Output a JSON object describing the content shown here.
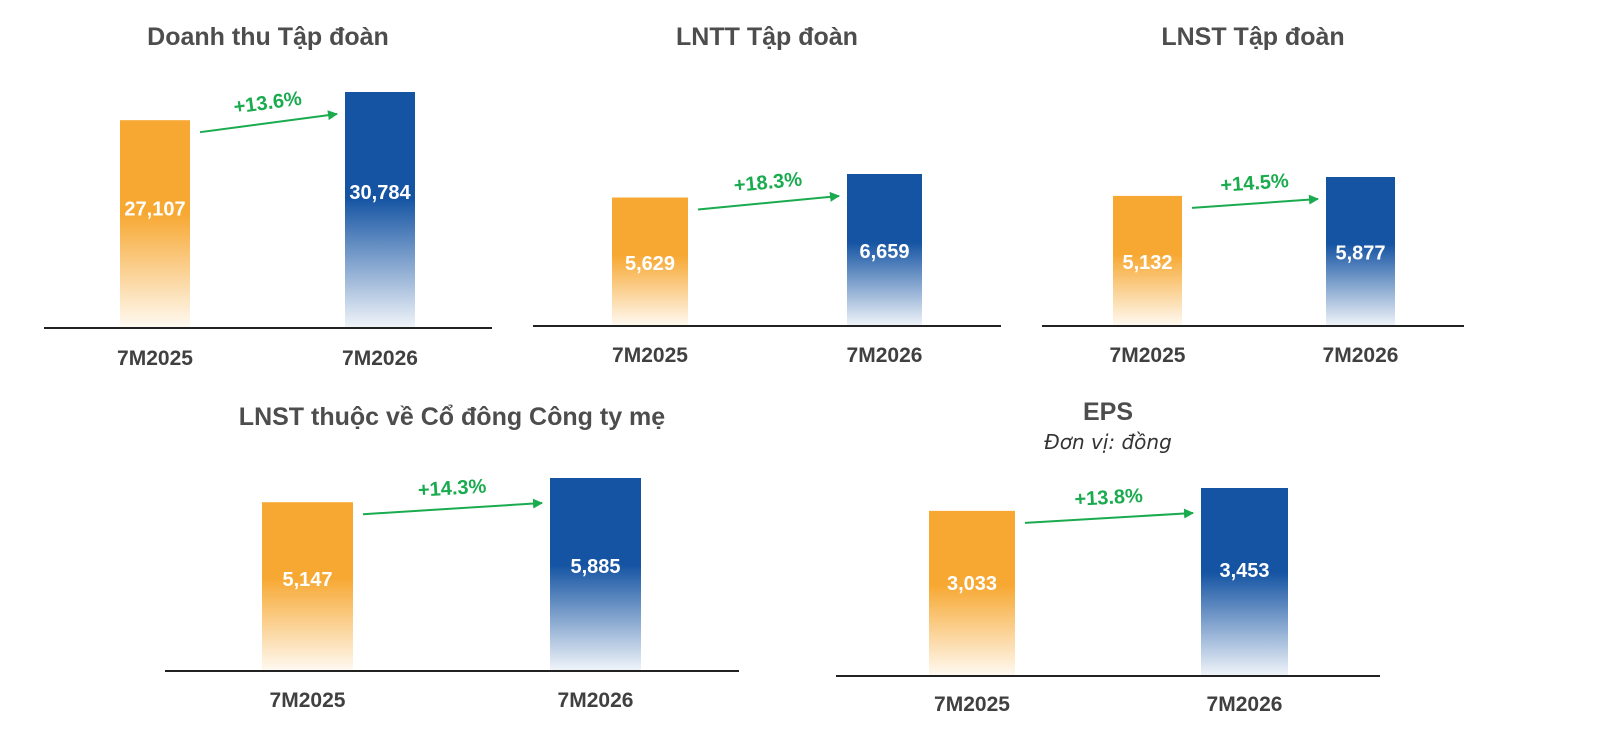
{
  "colors": {
    "prior": "#f7a832",
    "current": "#1554a3",
    "growth": "#1aab4f",
    "axis": "#222222"
  },
  "chart_data": [
    {
      "type": "bar",
      "title": "Doanh thu Tập đoàn",
      "categories": [
        "7M2025",
        "7M2026"
      ],
      "values": [
        27107,
        30784
      ],
      "labels": [
        "27,107",
        "30,784"
      ],
      "growth_label": "+13.6%"
    },
    {
      "type": "bar",
      "title": "LNTT Tập đoàn",
      "categories": [
        "7M2025",
        "7M2026"
      ],
      "values": [
        5629,
        6659
      ],
      "labels": [
        "5,629",
        "6,659"
      ],
      "growth_label": "+18.3%"
    },
    {
      "type": "bar",
      "title": "LNST Tập đoàn",
      "categories": [
        "7M2025",
        "7M2026"
      ],
      "values": [
        5132,
        5877
      ],
      "labels": [
        "5,132",
        "5,877"
      ],
      "growth_label": "+14.5%"
    },
    {
      "type": "bar",
      "title": "LNST thuộc về Cổ đông Công ty mẹ",
      "categories": [
        "7M2025",
        "7M2026"
      ],
      "values": [
        5147,
        5885
      ],
      "labels": [
        "5,147",
        "5,885"
      ],
      "growth_label": "+14.3%"
    },
    {
      "type": "bar",
      "title": "EPS",
      "subtitle": "Đơn vị: đồng",
      "categories": [
        "7M2025",
        "7M2026"
      ],
      "values": [
        3033,
        3453
      ],
      "labels": [
        "3,033",
        "3,453"
      ],
      "growth_label": "+13.8%"
    }
  ]
}
